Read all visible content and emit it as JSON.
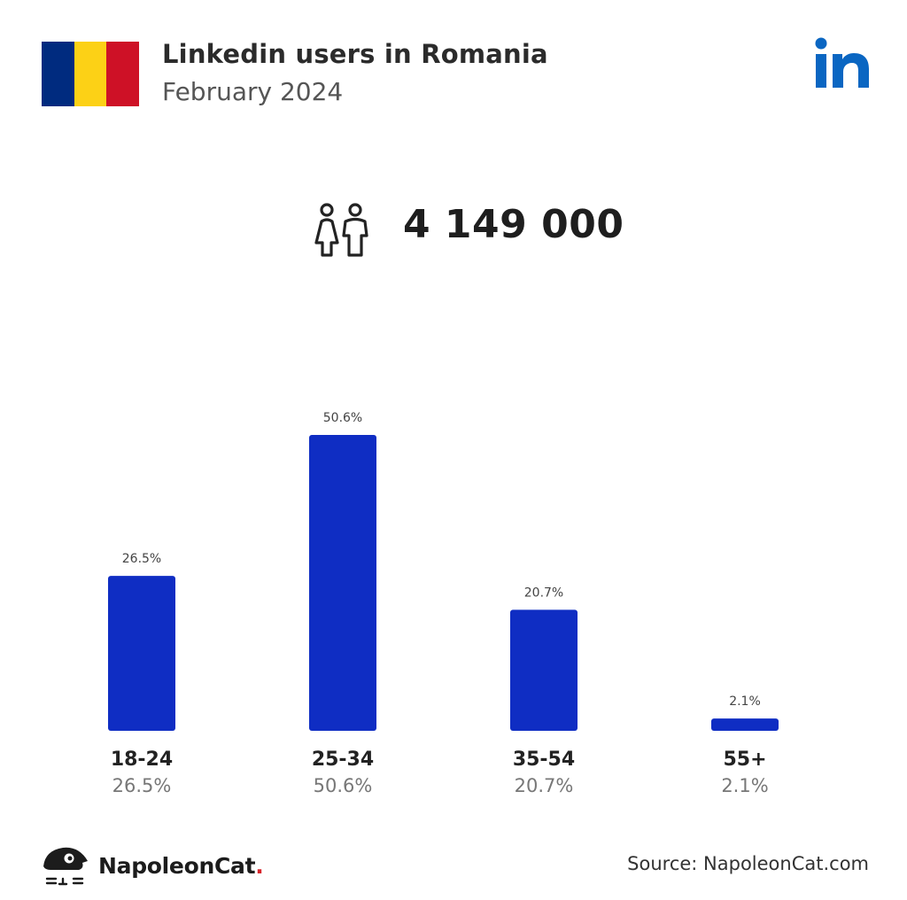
{
  "header": {
    "title": "Linkedin users in Romania",
    "subtitle": "February 2024",
    "flag_colors": [
      "#002B7F",
      "#FCD116",
      "#CE1126"
    ],
    "platform_icon": "linkedin-icon"
  },
  "total": {
    "value": "4 149 000",
    "icon": "users-icon"
  },
  "chart_data": {
    "type": "bar",
    "categories": [
      "18-24",
      "25-34",
      "35-54",
      "55+"
    ],
    "values": [
      26.5,
      50.6,
      20.7,
      2.1
    ],
    "value_labels": [
      "26.5%",
      "50.6%",
      "20.7%",
      "2.1%"
    ],
    "bar_color": "#0F2DC3",
    "title": "",
    "xlabel": "",
    "ylabel": "",
    "grid": false
  },
  "footer": {
    "brand_name": "NapoleonCat",
    "brand_dot": ".",
    "source": "Source: NapoleonCat.com",
    "accent": "#D8232A"
  }
}
